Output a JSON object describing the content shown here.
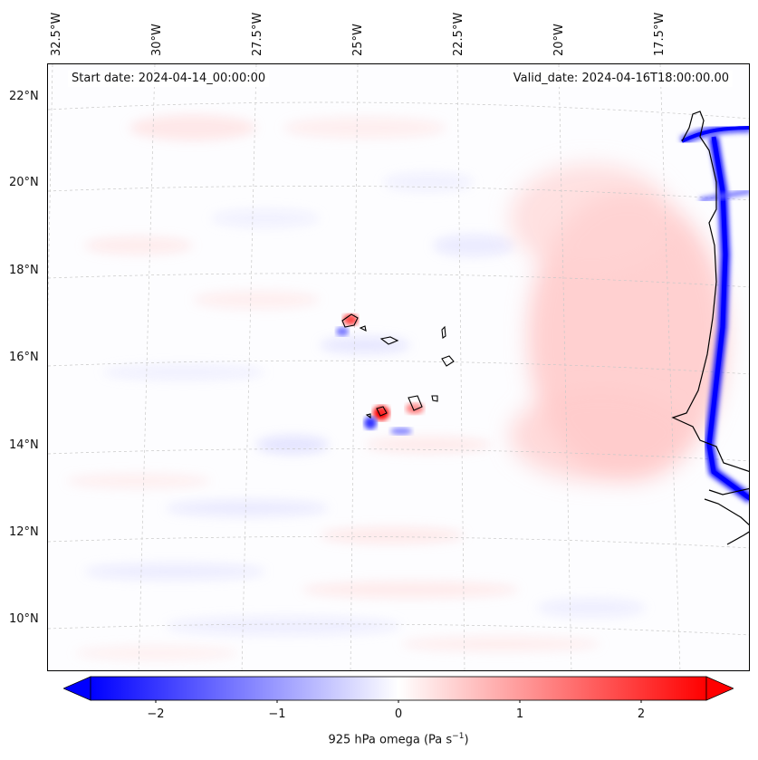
{
  "header": {
    "start_date": "Start date: 2024-04-14_00:00:00",
    "valid_date": "Valid_date: 2024-04-16T18:00:00.00"
  },
  "longitude_labels": [
    "32.5°W",
    "30°W",
    "27.5°W",
    "25°W",
    "22.5°W",
    "20°W",
    "17.5°W"
  ],
  "latitude_labels": [
    "22°N",
    "20°N",
    "18°N",
    "16°N",
    "14°N",
    "12°N",
    "10°N"
  ],
  "colorbar": {
    "label": "925 hPa omega (Pa s",
    "label_sup": "−1",
    "label_tail": ")",
    "ticks": [
      "−2",
      "−1",
      "0",
      "1",
      "2"
    ],
    "range": [
      -2.6,
      2.6
    ],
    "cmap": "bwr",
    "colors": {
      "negative": "#0000ff",
      "zero": "#ffffff",
      "positive": "#ff0000"
    }
  },
  "map": {
    "projection": "Lambert conformal",
    "extent": {
      "lon_min": -33,
      "lon_max": -16,
      "lat_min": 9,
      "lat_max": 22.8
    },
    "features": [
      "coastline-west-africa",
      "cape-verde-islands"
    ],
    "gridlines": "dashed light grey"
  }
}
